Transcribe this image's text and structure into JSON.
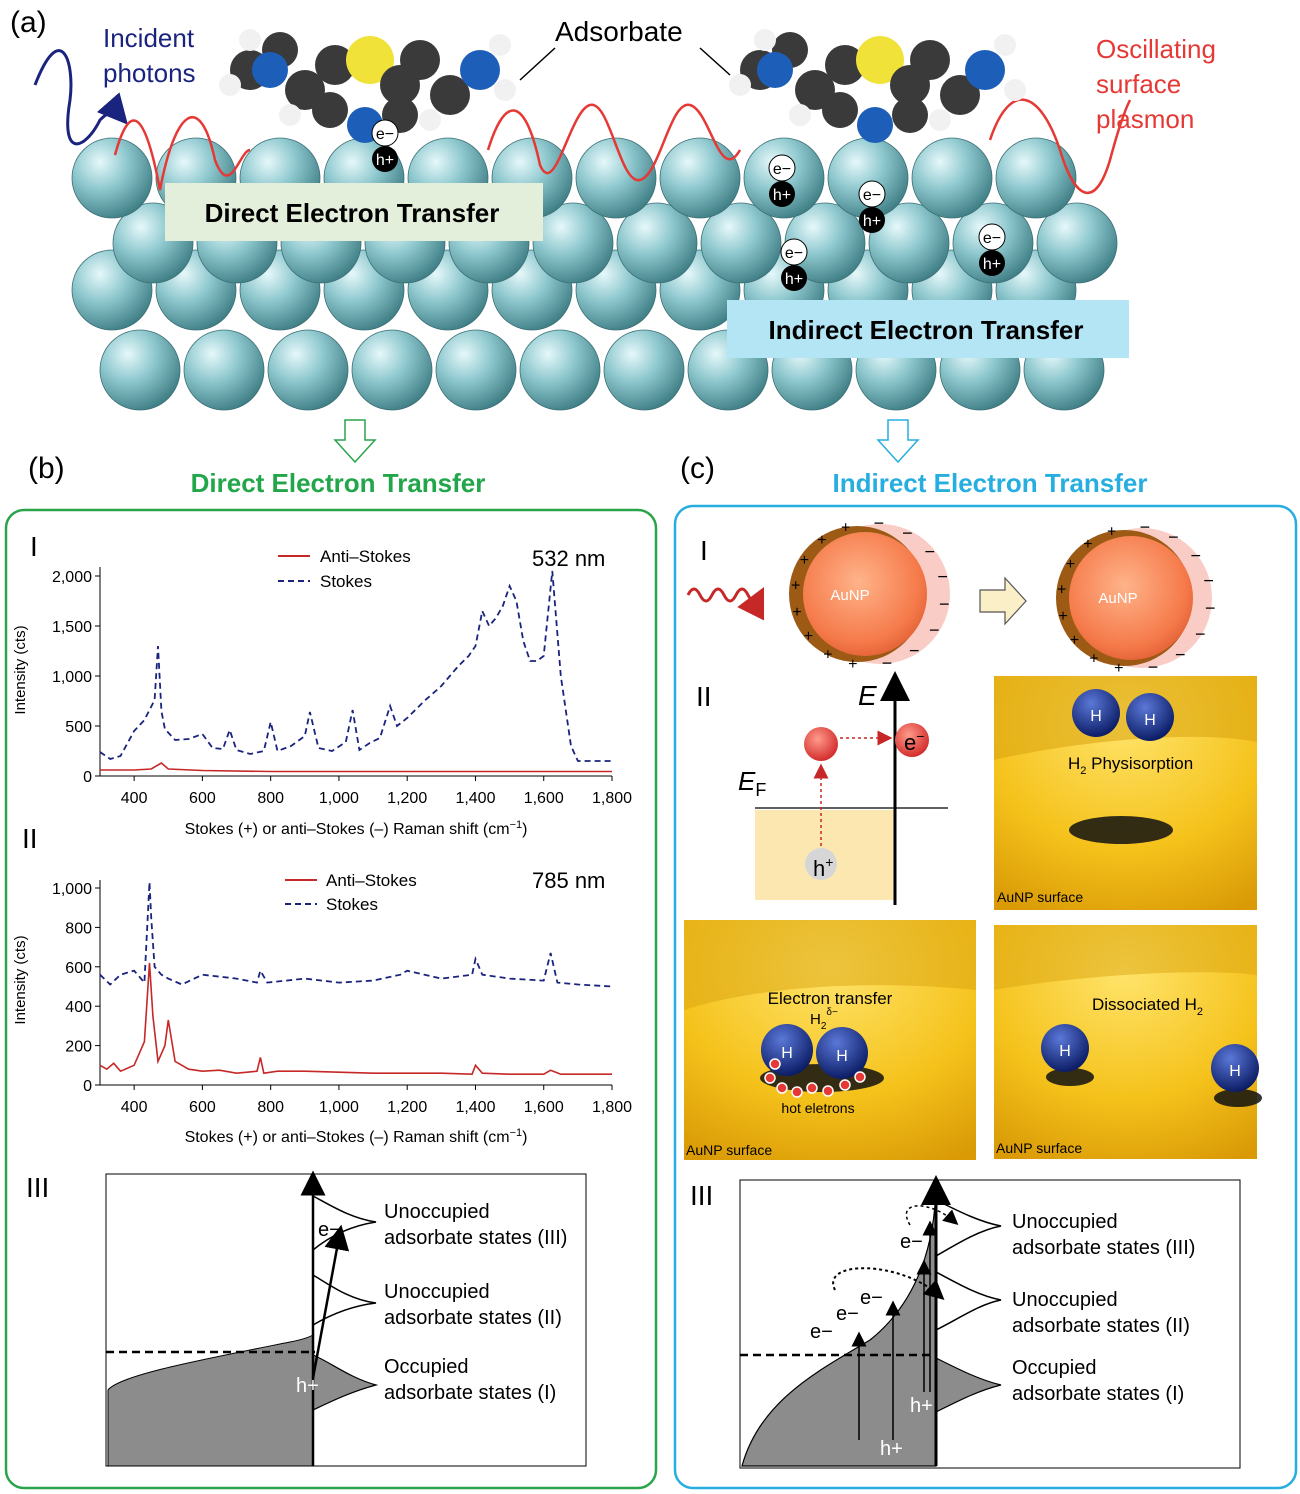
{
  "panel_a": {
    "label": "(a)",
    "incident_photons": [
      "Incident",
      "photons"
    ],
    "adsorbate": "Adsorbate",
    "oscillating_plasmon": [
      "Oscillating",
      "surface",
      "plasmon"
    ],
    "direct_box": "Direct Electron Transfer",
    "indirect_box": "Indirect Electron Transfer",
    "electron": "e−",
    "hole": "h+",
    "colors": {
      "blue_text": "#1a237e",
      "red_text": "#e53935",
      "atom_fill": "#8fc9cf",
      "direct_box_bg": "#e3eedb",
      "indirect_box_bg": "#b3e5f5"
    }
  },
  "panel_b": {
    "label": "(b)",
    "title": "Direct Electron Transfer",
    "title_color": "#22a64a",
    "border_color": "#2aa44a",
    "sub_I": {
      "roman": "I",
      "wavelength": "532 nm",
      "legend": [
        "Anti–Stokes",
        "Stokes"
      ],
      "ylabel": "Intensity (cts)",
      "xlabel": "Stokes (+) or anti–Stokes (–) Raman shift (cm",
      "xlabel_sup": "−1",
      "xlabel_end": ")",
      "x_ticks": [
        "400",
        "600",
        "800",
        "1,000",
        "1,200",
        "1,400",
        "1,600",
        "1,800"
      ],
      "y_ticks": [
        "0",
        "500",
        "1,000",
        "1,500",
        "2,000"
      ]
    },
    "sub_II": {
      "roman": "II",
      "wavelength": "785 nm",
      "legend": [
        "Anti–Stokes",
        "Stokes"
      ],
      "ylabel": "Intensity (cts)",
      "xlabel": "Stokes (+) or anti–Stokes (–) Raman shift (cm",
      "xlabel_sup": "−1",
      "xlabel_end": ")",
      "x_ticks": [
        "400",
        "600",
        "800",
        "1,000",
        "1,200",
        "1,400",
        "1,600",
        "1,800"
      ],
      "y_ticks": [
        "0",
        "200",
        "400",
        "600",
        "800",
        "1,000"
      ]
    },
    "sub_III": {
      "roman": "III",
      "labels": [
        [
          "Unoccupied",
          "adsorbate states (III)"
        ],
        [
          "Unoccupied",
          "adsorbate states (II)"
        ],
        [
          "Occupied",
          "adsorbate states (I)"
        ]
      ],
      "electron": "e−",
      "hole": "h+"
    }
  },
  "panel_c": {
    "label": "(c)",
    "title": "Indirect Electron Transfer",
    "title_color": "#27aee0",
    "border_color": "#27aee0",
    "sub_I": {
      "roman": "I",
      "aunp": "AuNP"
    },
    "sub_II": {
      "roman": "II",
      "energy": "E",
      "fermi": "E",
      "fermi_sub": "F",
      "electron": "e",
      "hole": "h",
      "h2_physisorption": "Physisorption",
      "electron_transfer": "Electron transfer",
      "h2_charge_sup": "δ−",
      "hot_electrons": "hot eletrons",
      "dissociated": "Dissociated H",
      "surface": "AuNP surface",
      "H": "H"
    },
    "sub_III": {
      "roman": "III",
      "labels": [
        [
          "Unoccupied",
          "adsorbate states (III)"
        ],
        [
          "Unoccupied",
          "adsorbate states (II)"
        ],
        [
          "Occupied",
          "adsorbate states (I)"
        ]
      ],
      "electron": "e−",
      "hole": "h+"
    }
  },
  "chart_data": [
    {
      "type": "line",
      "title": "532 nm",
      "xlabel": "Stokes (+) or anti–Stokes (–) Raman shift (cm−1)",
      "ylabel": "Intensity (cts)",
      "xlim": [
        300,
        1800
      ],
      "ylim": [
        0,
        2000
      ],
      "legend_position": "top-center",
      "series": [
        {
          "name": "Anti–Stokes",
          "color": "#c62828",
          "style": "solid",
          "x": [
            300,
            400,
            450,
            480,
            500,
            600,
            800,
            1000,
            1200,
            1400,
            1600,
            1800
          ],
          "y": [
            60,
            60,
            70,
            130,
            70,
            55,
            45,
            45,
            45,
            45,
            45,
            45
          ]
        },
        {
          "name": "Stokes",
          "color": "#1a237e",
          "style": "dashed",
          "x": [
            300,
            330,
            360,
            400,
            430,
            460,
            470,
            480,
            490,
            520,
            560,
            600,
            630,
            660,
            680,
            700,
            740,
            780,
            800,
            820,
            860,
            900,
            915,
            940,
            980,
            1020,
            1040,
            1060,
            1090,
            1120,
            1150,
            1170,
            1200,
            1250,
            1300,
            1350,
            1380,
            1400,
            1420,
            1440,
            1460,
            1480,
            1500,
            1520,
            1540,
            1560,
            1580,
            1600,
            1625,
            1650,
            1680,
            1700,
            1800
          ],
          "y": [
            240,
            170,
            200,
            450,
            560,
            760,
            1300,
            650,
            470,
            360,
            370,
            420,
            280,
            270,
            460,
            260,
            220,
            250,
            540,
            250,
            300,
            400,
            640,
            280,
            250,
            340,
            660,
            260,
            330,
            380,
            700,
            500,
            580,
            750,
            900,
            1100,
            1200,
            1300,
            1650,
            1500,
            1580,
            1700,
            1900,
            1750,
            1350,
            1150,
            1150,
            1200,
            2050,
            1000,
            300,
            150,
            150
          ]
        }
      ]
    },
    {
      "type": "line",
      "title": "785 nm",
      "xlabel": "Stokes (+) or anti–Stokes (–) Raman shift (cm−1)",
      "ylabel": "Intensity (cts)",
      "xlim": [
        300,
        1800
      ],
      "ylim": [
        0,
        1000
      ],
      "legend_position": "top-center",
      "series": [
        {
          "name": "Anti–Stokes",
          "color": "#c62828",
          "style": "solid",
          "x": [
            300,
            320,
            340,
            360,
            400,
            430,
            445,
            455,
            470,
            490,
            500,
            520,
            560,
            600,
            650,
            700,
            760,
            770,
            780,
            820,
            900,
            1000,
            1100,
            1200,
            1300,
            1390,
            1400,
            1420,
            1500,
            1600,
            1620,
            1650,
            1800
          ],
          "y": [
            100,
            80,
            110,
            70,
            100,
            220,
            620,
            350,
            120,
            200,
            330,
            120,
            80,
            70,
            75,
            60,
            70,
            140,
            60,
            70,
            70,
            65,
            60,
            60,
            60,
            55,
            100,
            60,
            55,
            55,
            75,
            55,
            55
          ]
        },
        {
          "name": "Stokes",
          "color": "#1a237e",
          "style": "dashed",
          "x": [
            300,
            330,
            360,
            400,
            430,
            445,
            450,
            460,
            480,
            500,
            540,
            600,
            700,
            760,
            770,
            790,
            900,
            1000,
            1100,
            1180,
            1200,
            1300,
            1390,
            1400,
            1420,
            1500,
            1600,
            1620,
            1640,
            1700,
            1800
          ],
          "y": [
            560,
            510,
            560,
            580,
            520,
            1030,
            850,
            600,
            560,
            540,
            510,
            560,
            540,
            520,
            580,
            520,
            540,
            520,
            530,
            560,
            580,
            540,
            560,
            640,
            560,
            540,
            530,
            670,
            520,
            510,
            500
          ]
        }
      ]
    }
  ]
}
